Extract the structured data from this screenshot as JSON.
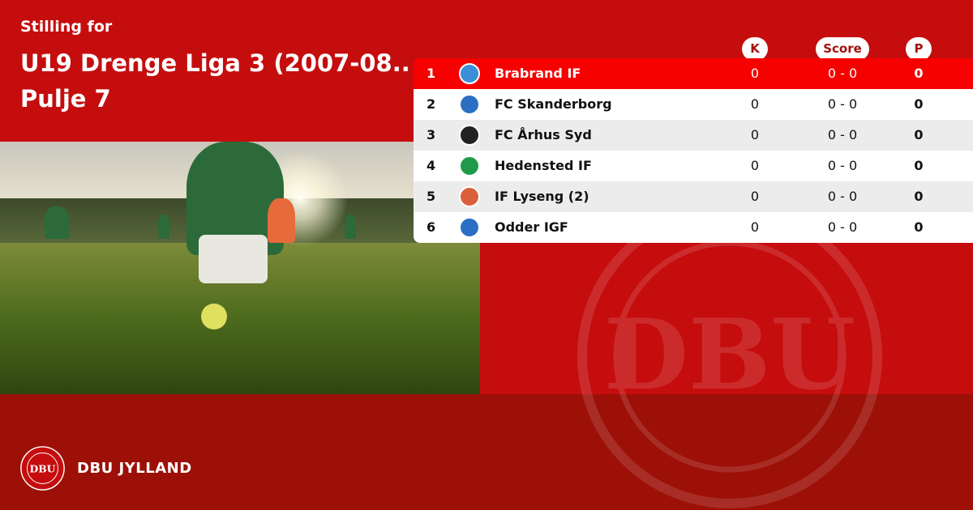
{
  "header": {
    "subtitle": "Stilling for",
    "title_line1": "U19 Drenge Liga 3 (2007-08..",
    "title_line2": "Pulje 7"
  },
  "columns": {
    "k": "K",
    "score": "Score",
    "p": "P"
  },
  "rows": [
    {
      "rank": "1",
      "team": "Brabrand IF",
      "k": "0",
      "score": "0 - 0",
      "p": "0",
      "logo_color": "#3a8fd8",
      "highlight": true
    },
    {
      "rank": "2",
      "team": "FC Skanderborg",
      "k": "0",
      "score": "0 - 0",
      "p": "0",
      "logo_color": "#2a6fc4"
    },
    {
      "rank": "3",
      "team": "FC Århus Syd",
      "k": "0",
      "score": "0 - 0",
      "p": "0",
      "logo_color": "#222222"
    },
    {
      "rank": "4",
      "team": "Hedensted IF",
      "k": "0",
      "score": "0 - 0",
      "p": "0",
      "logo_color": "#1f9a4a"
    },
    {
      "rank": "5",
      "team": "IF Lyseng (2)",
      "k": "0",
      "score": "0 - 0",
      "p": "0",
      "logo_color": "#d9603a"
    },
    {
      "rank": "6",
      "team": "Odder IGF",
      "k": "0",
      "score": "0 - 0",
      "p": "0",
      "logo_color": "#2a6fc4"
    }
  ],
  "footer": {
    "org": "DBU JYLLAND",
    "logo_text": "DBU"
  },
  "colors": {
    "primary": "#c50d0e",
    "dark": "#9c1007",
    "highlight": "#f60000"
  }
}
